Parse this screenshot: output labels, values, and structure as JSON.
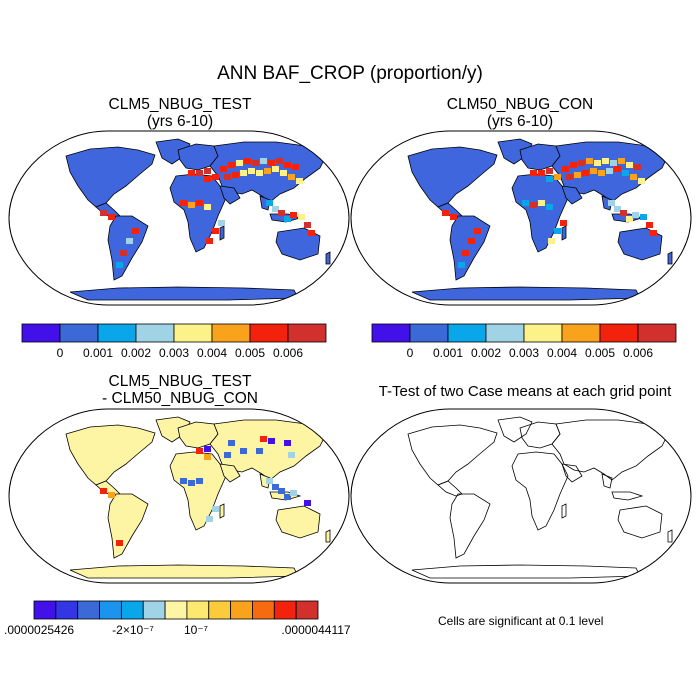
{
  "main_title": "ANN BAF_CROP (proportion/y)",
  "colors": {
    "frame": "#000000",
    "coast": "#000000",
    "diff_land": "#fdf5a4",
    "base_land": "#3f66dc"
  },
  "chart_data": [
    {
      "type": "heatmap",
      "map": "robinson-world",
      "title": "CLM5_NBUG_TEST",
      "subtitle": "(yrs 6-10)",
      "colorbar": {
        "colors": [
          "#4211ea",
          "#3b6ad8",
          "#0aa6ea",
          "#a0d3e6",
          "#fdf18a",
          "#f9a21b",
          "#f2220c",
          "#d2302c"
        ],
        "tick_labels": [
          "0",
          "0.001",
          "0.002",
          "0.003",
          "0.004",
          "0.005",
          "0.006"
        ]
      }
    },
    {
      "type": "heatmap",
      "map": "robinson-world",
      "title": "CLM50_NBUG_CON",
      "subtitle": "(yrs 6-10)",
      "colorbar": {
        "colors": [
          "#4211ea",
          "#3b6ad8",
          "#0aa6ea",
          "#a0d3e6",
          "#fdf18a",
          "#f9a21b",
          "#f2220c",
          "#d2302c"
        ],
        "tick_labels": [
          "0",
          "0.001",
          "0.002",
          "0.003",
          "0.004",
          "0.005",
          "0.006"
        ]
      }
    },
    {
      "type": "heatmap",
      "map": "robinson-world",
      "title": "CLM5_NBUG_TEST",
      "subtitle": "- CLM50_NBUG_CON",
      "colorbar": {
        "colors": [
          "#4211ea",
          "#3236e4",
          "#3b6ad8",
          "#1a94ec",
          "#0aa6ea",
          "#a0d3e6",
          "#fdf5a4",
          "#fde870",
          "#fbcb3c",
          "#f9a21b",
          "#f66a10",
          "#f2220c",
          "#d2302c"
        ],
        "tick_labels": [
          ".0000025426",
          "-2×10⁻⁷",
          "10⁻⁷",
          ".0000044117"
        ]
      }
    },
    {
      "type": "heatmap",
      "map": "robinson-world",
      "title": "T-Test of two Case means at each grid point",
      "note": "Cells are significant at 0.1 level"
    }
  ]
}
